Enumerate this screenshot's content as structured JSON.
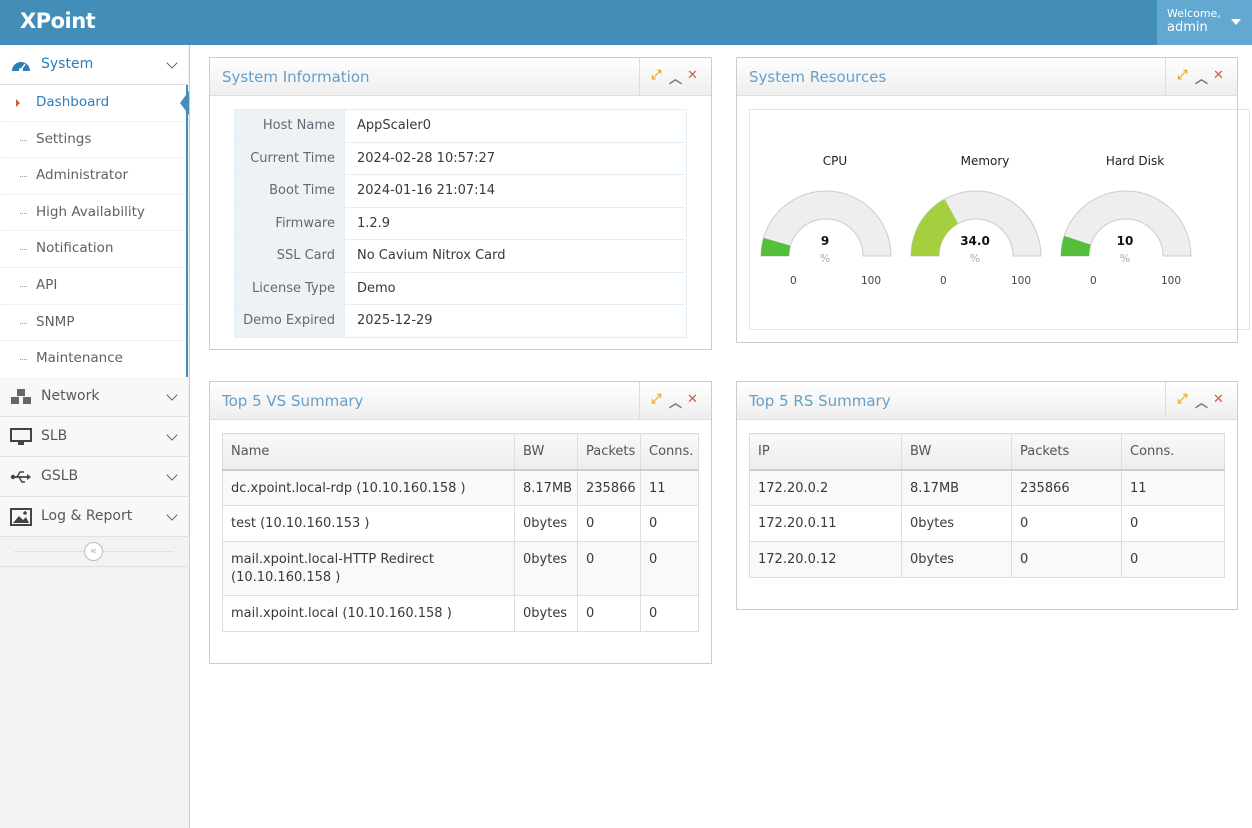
{
  "app": {
    "logo": "XPoint",
    "welcome": "Welcome,",
    "user": "admin"
  },
  "sidebar": {
    "system": "System",
    "items": [
      "Dashboard",
      "Settings",
      "Administrator",
      "High Availability",
      "Notification",
      "API",
      "SNMP",
      "Maintenance"
    ],
    "network": "Network",
    "slb": "SLB",
    "gslb": "GSLB",
    "log": "Log & Report"
  },
  "sysinfo": {
    "title": "System Information",
    "rows": [
      {
        "k": "Host Name",
        "v": "AppScaler0"
      },
      {
        "k": "Current Time",
        "v": "2024-02-28 10:57:27"
      },
      {
        "k": "Boot Time",
        "v": "2024-01-16 21:07:14"
      },
      {
        "k": "Firmware",
        "v": "1.2.9"
      },
      {
        "k": "SSL Card",
        "v": "No Cavium Nitrox Card"
      },
      {
        "k": "License Type",
        "v": "Demo"
      },
      {
        "k": "Demo Expired",
        "v": "2025-12-29"
      }
    ]
  },
  "resources": {
    "title": "System Resources",
    "gauges": [
      {
        "label": "CPU",
        "value": "9",
        "pct": 9,
        "unit": "%",
        "min": "0",
        "max": "100",
        "color": "#55bf3b"
      },
      {
        "label": "Memory",
        "value": "34.0",
        "pct": 34,
        "unit": "%",
        "min": "0",
        "max": "100",
        "color": "#a4d03f"
      },
      {
        "label": "Hard Disk",
        "value": "10",
        "pct": 10,
        "unit": "%",
        "min": "0",
        "max": "100",
        "color": "#55bf3b"
      }
    ]
  },
  "vs": {
    "title": "Top 5 VS Summary",
    "headers": [
      "Name",
      "BW",
      "Packets",
      "Conns."
    ],
    "rows": [
      [
        "dc.xpoint.local-rdp (10.10.160.158 )",
        "8.17MB",
        "235866",
        "11"
      ],
      [
        "test (10.10.160.153 )",
        "0bytes",
        "0",
        "0"
      ],
      [
        "mail.xpoint.local-HTTP Redirect (10.10.160.158 )",
        "0bytes",
        "0",
        "0"
      ],
      [
        "mail.xpoint.local (10.10.160.158 )",
        "0bytes",
        "0",
        "0"
      ]
    ]
  },
  "rs": {
    "title": "Top 5 RS Summary",
    "headers": [
      "IP",
      "BW",
      "Packets",
      "Conns."
    ],
    "rows": [
      [
        "172.20.0.2",
        "8.17MB",
        "235866",
        "11"
      ],
      [
        "172.20.0.11",
        "0bytes",
        "0",
        "0"
      ],
      [
        "172.20.0.12",
        "0bytes",
        "0",
        "0"
      ]
    ]
  }
}
